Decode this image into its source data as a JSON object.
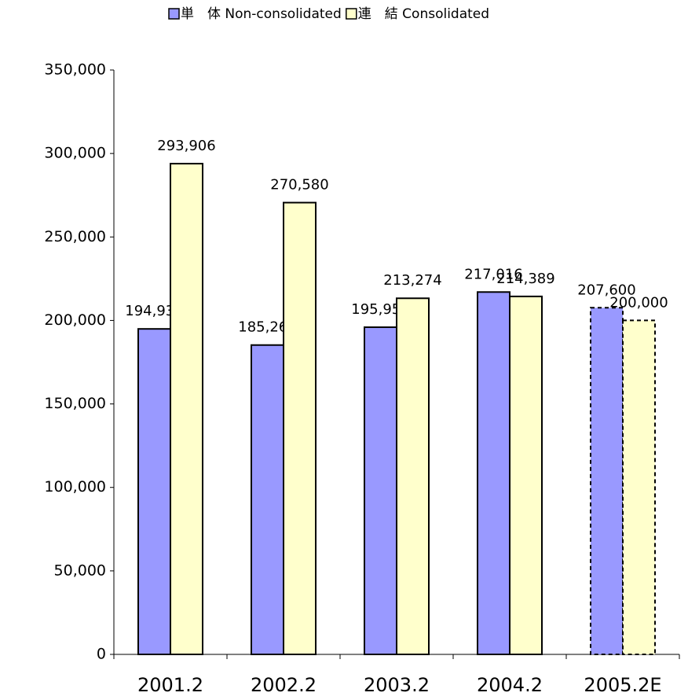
{
  "chart_data": {
    "type": "bar",
    "categories": [
      "2001.2",
      "2002.2",
      "2003.2",
      "2004.2",
      "2005.2E"
    ],
    "series": [
      {
        "name": "単　体 Non-consolidated",
        "color": "#9999ff",
        "values": [
          194931,
          185263,
          195951,
          217016,
          207600
        ],
        "value_labels": [
          "194,931",
          "185,263",
          "195,951",
          "217,016",
          "207,600"
        ]
      },
      {
        "name": "連　結 Consolidated",
        "color": "#ffffcc",
        "values": [
          293906,
          270580,
          213274,
          214389,
          200000
        ],
        "value_labels": [
          "293,906",
          "270,580",
          "213,274",
          "214,389",
          "200,000"
        ]
      }
    ],
    "ylim": [
      0,
      350000
    ],
    "yticks": [
      0,
      {
        "value": 50000,
        "label": "50,000"
      },
      {
        "value": 100000,
        "label": "100,000"
      },
      {
        "value": 150000,
        "label": "150,000"
      },
      {
        "value": 200000,
        "label": "200,000"
      },
      {
        "value": 250000,
        "label": "250,000"
      },
      {
        "value": 300000,
        "label": "300,000"
      },
      {
        "value": 350000,
        "label": "350,000"
      }
    ],
    "grid": false,
    "legend": "top",
    "dashed_categories": [
      4
    ]
  }
}
